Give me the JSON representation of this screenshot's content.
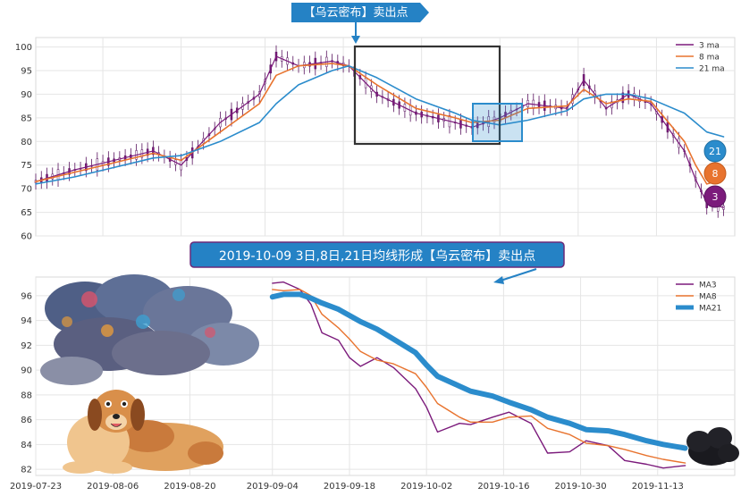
{
  "top_banner": "【乌云密布】卖出点",
  "mid_banner": "2019-10-09 3日,8日,21日均线形成【乌云密布】卖出点",
  "badges": [
    "21",
    "8",
    "3"
  ],
  "colors": {
    "ma3": "#7b1a7b",
    "ma8": "#e8732e",
    "ma21": "#2b8ccc",
    "banner": "#2582c5",
    "candle_up": "#7b1a7b",
    "candle_down": "#5a1560"
  },
  "chart_data": [
    {
      "type": "line",
      "title": "",
      "ylim": [
        60,
        102
      ],
      "yticks": [
        60,
        65,
        70,
        75,
        80,
        85,
        90,
        95,
        100
      ],
      "x_start": "2019-07-25",
      "x_end": "2019-11-27",
      "grid": true,
      "legend_position": "top-right",
      "series": [
        {
          "name": "3 ma",
          "x": [
            "2019-07-25",
            "2019-08-01",
            "2019-08-08",
            "2019-08-15",
            "2019-08-20",
            "2019-08-27",
            "2019-09-03",
            "2019-09-06",
            "2019-09-10",
            "2019-09-16",
            "2019-09-19",
            "2019-09-24",
            "2019-10-01",
            "2019-10-08",
            "2019-10-11",
            "2019-10-16",
            "2019-10-21",
            "2019-10-28",
            "2019-10-31",
            "2019-11-04",
            "2019-11-08",
            "2019-11-12",
            "2019-11-18",
            "2019-11-20",
            "2019-11-22",
            "2019-11-25"
          ],
          "values": [
            71.5,
            74,
            76,
            78,
            75,
            84,
            90,
            98,
            96,
            97,
            96,
            90,
            86,
            84,
            83,
            85,
            88,
            87,
            93,
            87,
            90,
            88,
            78,
            72,
            67,
            66
          ]
        },
        {
          "name": "8 ma",
          "x": [
            "2019-07-25",
            "2019-08-01",
            "2019-08-08",
            "2019-08-15",
            "2019-08-20",
            "2019-08-27",
            "2019-09-03",
            "2019-09-06",
            "2019-09-10",
            "2019-09-16",
            "2019-09-19",
            "2019-09-24",
            "2019-10-01",
            "2019-10-08",
            "2019-10-11",
            "2019-10-16",
            "2019-10-21",
            "2019-10-28",
            "2019-10-31",
            "2019-11-04",
            "2019-11-08",
            "2019-11-12",
            "2019-11-18",
            "2019-11-20",
            "2019-11-22",
            "2019-11-25"
          ],
          "values": [
            71.5,
            73.5,
            75.5,
            77.5,
            76,
            82,
            88,
            94,
            96,
            96.5,
            96,
            92,
            87,
            85,
            84,
            84.5,
            87,
            87.5,
            91,
            88,
            89,
            88.5,
            80,
            75,
            71,
            72
          ]
        },
        {
          "name": "21 ma",
          "x": [
            "2019-07-25",
            "2019-08-01",
            "2019-08-08",
            "2019-08-15",
            "2019-08-20",
            "2019-08-27",
            "2019-09-03",
            "2019-09-06",
            "2019-09-10",
            "2019-09-16",
            "2019-09-19",
            "2019-09-24",
            "2019-10-01",
            "2019-10-08",
            "2019-10-11",
            "2019-10-16",
            "2019-10-21",
            "2019-10-28",
            "2019-10-31",
            "2019-11-04",
            "2019-11-08",
            "2019-11-12",
            "2019-11-18",
            "2019-11-20",
            "2019-11-22",
            "2019-11-25"
          ],
          "values": [
            71,
            72.5,
            74.5,
            76.5,
            77,
            80,
            84,
            88,
            92,
            95,
            96,
            93.5,
            89,
            86,
            84.5,
            83.5,
            84.5,
            86.5,
            89,
            90,
            90,
            89,
            86,
            84,
            82,
            81
          ]
        }
      ]
    },
    {
      "type": "line",
      "title": "",
      "ylim": [
        81.5,
        97.5
      ],
      "yticks": [
        82,
        84,
        86,
        88,
        90,
        92,
        94,
        96
      ],
      "x_start": "2019-07-23",
      "x_end": "2019-11-27",
      "x_ticks": [
        "2019-07-23",
        "2019-08-06",
        "2019-08-20",
        "2019-09-04",
        "2019-09-18",
        "2019-10-02",
        "2019-10-16",
        "2019-10-30",
        "2019-11-13"
      ],
      "grid": true,
      "legend_position": "top-right",
      "series": [
        {
          "name": "MA3",
          "x": [
            "2019-09-04",
            "2019-09-06",
            "2019-09-09",
            "2019-09-11",
            "2019-09-13",
            "2019-09-16",
            "2019-09-18",
            "2019-09-20",
            "2019-09-23",
            "2019-09-26",
            "2019-09-30",
            "2019-10-02",
            "2019-10-04",
            "2019-10-08",
            "2019-10-10",
            "2019-10-14",
            "2019-10-17",
            "2019-10-21",
            "2019-10-24",
            "2019-10-28",
            "2019-10-31",
            "2019-11-04",
            "2019-11-07",
            "2019-11-11",
            "2019-11-14",
            "2019-11-18"
          ],
          "values": [
            97,
            97.1,
            96.5,
            95.3,
            93,
            92.4,
            91,
            90.3,
            91,
            90.2,
            88.5,
            87,
            85,
            85.7,
            85.6,
            86.2,
            86.6,
            85.7,
            83.3,
            83.4,
            84.3,
            83.9,
            82.7,
            82.4,
            82.1,
            82.3
          ]
        },
        {
          "name": "MA8",
          "x": [
            "2019-09-04",
            "2019-09-06",
            "2019-09-09",
            "2019-09-11",
            "2019-09-13",
            "2019-09-16",
            "2019-09-18",
            "2019-09-20",
            "2019-09-23",
            "2019-09-26",
            "2019-09-30",
            "2019-10-02",
            "2019-10-04",
            "2019-10-08",
            "2019-10-10",
            "2019-10-14",
            "2019-10-17",
            "2019-10-21",
            "2019-10-24",
            "2019-10-28",
            "2019-10-31",
            "2019-11-04",
            "2019-11-07",
            "2019-11-11",
            "2019-11-14",
            "2019-11-18"
          ],
          "values": [
            96.5,
            96.4,
            96.5,
            96,
            94.5,
            93.4,
            92.5,
            91.5,
            90.8,
            90.5,
            89.7,
            88.6,
            87.3,
            86.2,
            85.8,
            85.8,
            86.2,
            86.3,
            85.3,
            84.8,
            84.1,
            83.9,
            83.6,
            83.1,
            82.8,
            82.5
          ]
        },
        {
          "name": "MA21",
          "x": [
            "2019-09-04",
            "2019-09-06",
            "2019-09-09",
            "2019-09-11",
            "2019-09-13",
            "2019-09-16",
            "2019-09-18",
            "2019-09-20",
            "2019-09-23",
            "2019-09-26",
            "2019-09-30",
            "2019-10-02",
            "2019-10-04",
            "2019-10-08",
            "2019-10-10",
            "2019-10-14",
            "2019-10-17",
            "2019-10-21",
            "2019-10-24",
            "2019-10-28",
            "2019-10-31",
            "2019-11-04",
            "2019-11-07",
            "2019-11-11",
            "2019-11-14",
            "2019-11-18"
          ],
          "values": [
            95.9,
            96.1,
            96.1,
            95.8,
            95.4,
            94.9,
            94.4,
            93.9,
            93.3,
            92.5,
            91.4,
            90.4,
            89.5,
            88.7,
            88.3,
            87.9,
            87.4,
            86.8,
            86.2,
            85.7,
            85.2,
            85.1,
            84.8,
            84.3,
            84,
            83.7
          ]
        }
      ]
    }
  ]
}
